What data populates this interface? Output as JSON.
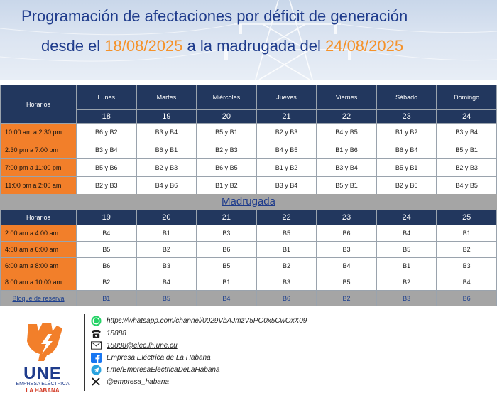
{
  "header": {
    "title_line1": "Programación de afectaciones por déficit de generación",
    "title_line2_prefix": "desde el ",
    "start_date": "18/08/2025",
    "title_line2_middle": " a la madrugada del ",
    "end_date": "24/08/2025"
  },
  "day_schedule": {
    "corner_label": "Horarios",
    "days": [
      "Lunes",
      "Martes",
      "Miércoles",
      "Jueves",
      "Viernes",
      "Sábado",
      "Domingo"
    ],
    "dates": [
      "18",
      "19",
      "20",
      "21",
      "22",
      "23",
      "24"
    ],
    "rows": [
      {
        "label": "10:00 am a 2:30 pm",
        "cells": [
          "B6 y B2",
          "B3 y B4",
          "B5 y B1",
          "B2 y B3",
          "B4 y B5",
          "B1 y B2",
          "B3 y B4"
        ]
      },
      {
        "label": "2:30 pm a 7:00 pm",
        "cells": [
          "B3 y B4",
          "B6 y B1",
          "B2 y B3",
          "B4 y B5",
          "B1 y B6",
          "B6 y B4",
          "B5 y B1"
        ]
      },
      {
        "label": "7:00 pm a 11:00 pm",
        "cells": [
          "B5 y B6",
          "B2 y B3",
          "B6 y B5",
          "B1 y B2",
          "B3 y B4",
          "B5 y B1",
          "B2 y B3"
        ]
      },
      {
        "label": "11:00 pm a 2:00 am",
        "cells": [
          "B2 y B3",
          "B4 y B6",
          "B1 y B2",
          "B3 y B4",
          "B5 y B1",
          "B2 y B6",
          "B4 y B5"
        ]
      }
    ]
  },
  "madrugada": {
    "title": "Madrugada",
    "corner_label": "Horarios",
    "dates": [
      "19",
      "20",
      "21",
      "22",
      "23",
      "24",
      "25"
    ],
    "rows": [
      {
        "label": "2:00 am a 4:00 am",
        "cells": [
          "B4",
          "B1",
          "B3",
          "B5",
          "B6",
          "B4",
          "B1"
        ]
      },
      {
        "label": "4:00 am a 6:00 am",
        "cells": [
          "B5",
          "B2",
          "B6",
          "B1",
          "B3",
          "B5",
          "B2"
        ]
      },
      {
        "label": "6:00 am a 8:00 am",
        "cells": [
          "B6",
          "B3",
          "B5",
          "B2",
          "B4",
          "B1",
          "B3"
        ]
      },
      {
        "label": "8:00 am a 10:00 am",
        "cells": [
          "B2",
          "B4",
          "B1",
          "B3",
          "B5",
          "B2",
          "B4"
        ]
      }
    ],
    "reserve": {
      "label": "Bloque de reserva",
      "cells": [
        "B1",
        "B5",
        "B4",
        "B6",
        "B2",
        "B3",
        "B6"
      ]
    }
  },
  "logo": {
    "name": "UNE",
    "subtitle": "EMPRESA ELÉCTRICA",
    "city": "LA HABANA"
  },
  "contacts": [
    {
      "icon": "whatsapp-icon",
      "text": "https://whatsapp.com/channel/0029VbAJmzV5PO0x5CwOxX09"
    },
    {
      "icon": "phone-icon",
      "text": "18888"
    },
    {
      "icon": "mail-icon",
      "text": "18888@elec.lh.une.cu"
    },
    {
      "icon": "facebook-icon",
      "text": "Empresa Eléctrica de La Habana"
    },
    {
      "icon": "telegram-icon",
      "text": "t.me/EmpresaElectricaDeLaHabana"
    },
    {
      "icon": "x-icon",
      "text": "@empresa_habana"
    }
  ],
  "colors": {
    "header_navy": "#22375e",
    "time_orange": "#f27f2a",
    "title_blue": "#1f3c8c",
    "date_orange": "#f5922a",
    "reserve_gray": "#a5a5a5"
  }
}
